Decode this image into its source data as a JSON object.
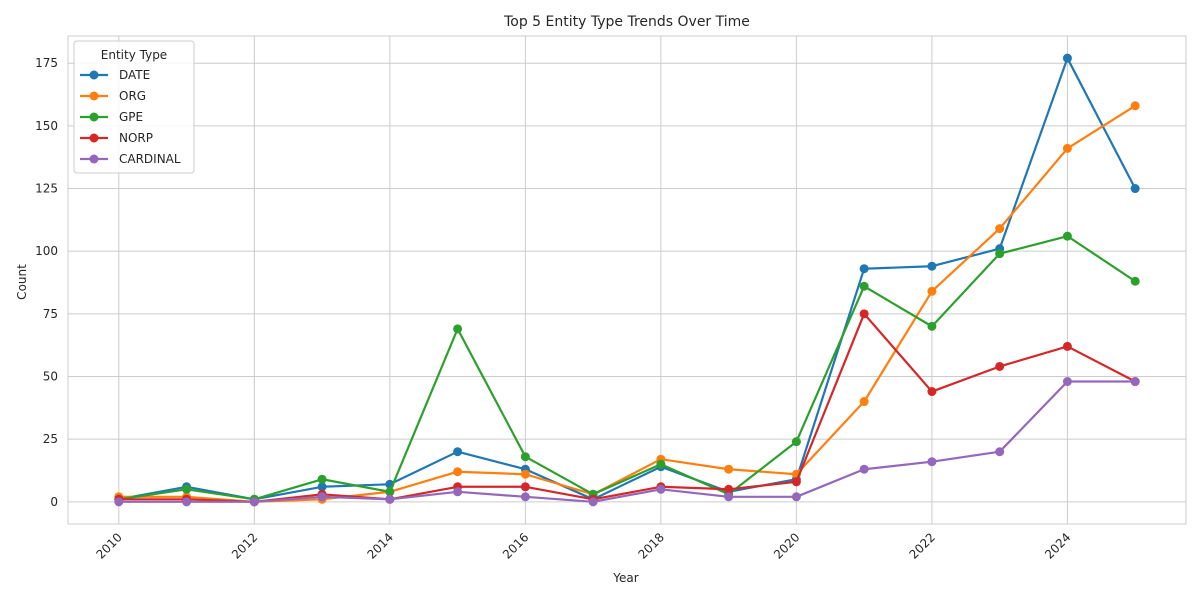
{
  "chart_data": {
    "type": "line",
    "title": "Top 5 Entity Type Trends Over Time",
    "xlabel": "Year",
    "ylabel": "Count",
    "x": [
      2010,
      2011,
      2012,
      2013,
      2014,
      2015,
      2016,
      2017,
      2018,
      2019,
      2020,
      2021,
      2022,
      2023,
      2024,
      2025
    ],
    "xticks": [
      2010,
      2012,
      2014,
      2016,
      2018,
      2020,
      2022,
      2024
    ],
    "yticks": [
      0,
      25,
      50,
      75,
      100,
      125,
      150,
      175
    ],
    "xlim": [
      2009.25,
      2025.75
    ],
    "ylim": [
      -8.85,
      185.85
    ],
    "grid": true,
    "legend": {
      "title": "Entity Type",
      "placement": "top-left"
    },
    "series": [
      {
        "name": "DATE",
        "color": "#1f77b4",
        "values": [
          1,
          6,
          1,
          6,
          7,
          20,
          13,
          1,
          14,
          4,
          9,
          93,
          94,
          101,
          177,
          125
        ]
      },
      {
        "name": "ORG",
        "color": "#ff7f0e",
        "values": [
          2,
          2,
          0,
          1,
          4,
          12,
          11,
          3,
          17,
          13,
          11,
          40,
          84,
          109,
          141,
          158
        ]
      },
      {
        "name": "GPE",
        "color": "#2ca02c",
        "values": [
          1,
          5,
          1,
          9,
          4,
          69,
          18,
          3,
          15,
          3,
          24,
          86,
          70,
          99,
          106,
          88
        ]
      },
      {
        "name": "NORP",
        "color": "#d62728",
        "values": [
          1,
          1,
          0,
          3,
          1,
          6,
          6,
          1,
          6,
          5,
          8,
          75,
          44,
          54,
          62,
          48
        ]
      },
      {
        "name": "CARDINAL",
        "color": "#9467bd",
        "values": [
          0,
          0,
          0,
          2,
          1,
          4,
          2,
          0,
          5,
          2,
          2,
          13,
          16,
          20,
          48,
          48
        ]
      }
    ]
  }
}
